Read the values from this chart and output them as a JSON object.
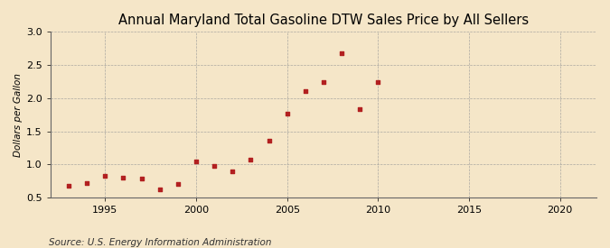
{
  "title": "Annual Maryland Total Gasoline DTW Sales Price by All Sellers",
  "ylabel": "Dollars per Gallon",
  "source": "Source: U.S. Energy Information Administration",
  "years": [
    1993,
    1994,
    1995,
    1996,
    1997,
    1998,
    1999,
    2000,
    2001,
    2002,
    2003,
    2004,
    2005,
    2006,
    2007,
    2008,
    2009,
    2010
  ],
  "values": [
    0.67,
    0.72,
    0.82,
    0.8,
    0.79,
    0.62,
    0.7,
    1.04,
    0.98,
    0.9,
    1.07,
    1.36,
    1.77,
    2.1,
    2.24,
    2.68,
    1.83,
    2.24
  ],
  "marker_color": "#b22020",
  "bg_color": "#f5e6c8",
  "xlim": [
    1992,
    2022
  ],
  "ylim": [
    0.5,
    3.0
  ],
  "yticks": [
    0.5,
    1.0,
    1.5,
    2.0,
    2.5,
    3.0
  ],
  "xticks": [
    1995,
    2000,
    2005,
    2010,
    2015,
    2020
  ],
  "title_fontsize": 10.5,
  "label_fontsize": 7.5,
  "tick_fontsize": 8,
  "source_fontsize": 7.5
}
